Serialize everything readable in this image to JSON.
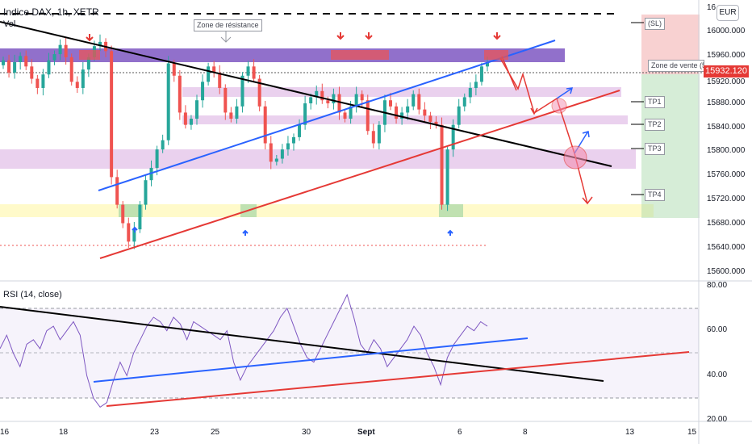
{
  "header": {
    "symbol": "Indice DAX, 1h, XETR",
    "volume_label": "Vol",
    "currency": "EUR"
  },
  "annotations": {
    "resistance_zone": "Zone de résistance",
    "sell_zone": "Zone de vente (5",
    "sl": "(SL)",
    "tp1": "TP1",
    "tp2": "TP2",
    "tp3": "TP3",
    "tp4": "TP4"
  },
  "price_axis": {
    "top_partial": "16",
    "current_price": "15932.120",
    "ticks": [
      "16000.000",
      "15960.000",
      "15920.000",
      "15880.000",
      "15840.000",
      "15800.000",
      "15760.000",
      "15720.000",
      "15680.000",
      "15640.000",
      "15600.000"
    ]
  },
  "rsi": {
    "label": "RSI (14, close)",
    "ticks": [
      "80.00",
      "60.00",
      "40.00",
      "20.00"
    ]
  },
  "time_axis": {
    "labels": [
      "16",
      "18",
      "23",
      "25",
      "30",
      "Sept",
      "6",
      "8",
      "13",
      "15"
    ]
  },
  "colors": {
    "up_candle": "#26a69a",
    "down_candle": "#ef5350",
    "resistance_zone": "#7e57c2",
    "support_zone": "#fff9c4",
    "trend_blue": "#2962ff",
    "trend_red": "#e53935",
    "rsi_line": "#7e57c2"
  },
  "chart_data": [
    {
      "type": "candlestick",
      "title": "Indice DAX, 1h, XETR",
      "x": [
        "16",
        "18",
        "23",
        "25",
        "30",
        "Sept",
        "6",
        "8",
        "13",
        "15"
      ],
      "ylim": [
        15580,
        16020
      ],
      "current_price": 15932.12,
      "levels": {
        "tp1": 15880,
        "tp2": 15845,
        "tp3": 15800,
        "tp4": 15725
      },
      "closes": [
        15935,
        15915,
        15932,
        15942,
        15925,
        15905,
        15890,
        15912,
        15935,
        15945,
        15960,
        15940,
        15900,
        15890,
        15920,
        15940,
        15958,
        15965,
        15950,
        15745,
        15700,
        15670,
        15640,
        15660,
        15700,
        15740,
        15760,
        15790,
        15805,
        15930,
        15910,
        15850,
        15830,
        15840,
        15870,
        15900,
        15925,
        15915,
        15890,
        15850,
        15840,
        15860,
        15910,
        15925,
        15905,
        15860,
        15800,
        15770,
        15775,
        15790,
        15800,
        15810,
        15830,
        15865,
        15875,
        15885,
        15870,
        15865,
        15880,
        15850,
        15840,
        15860,
        15880,
        15870,
        15820,
        15800,
        15830,
        15870,
        15860,
        15840,
        15850,
        15860,
        15880,
        15855,
        15845,
        15835,
        15830,
        15700,
        15790,
        15830,
        15860,
        15875,
        15890,
        15900,
        15925,
        15932
      ]
    },
    {
      "type": "line",
      "title": "RSI (14, close)",
      "ylim": [
        20,
        80
      ],
      "values": [
        52,
        58,
        50,
        44,
        54,
        56,
        52,
        60,
        62,
        56,
        60,
        64,
        58,
        40,
        30,
        26,
        28,
        38,
        46,
        40,
        50,
        56,
        62,
        66,
        64,
        60,
        66,
        63,
        56,
        64,
        62,
        60,
        58,
        56,
        60,
        46,
        38,
        44,
        48,
        52,
        56,
        60,
        66,
        70,
        62,
        54,
        48,
        46,
        52,
        58,
        64,
        70,
        76,
        66,
        54,
        50,
        56,
        52,
        44,
        48,
        52,
        56,
        62,
        58,
        50,
        44,
        36,
        48,
        54,
        58,
        62,
        60,
        64,
        62
      ]
    }
  ]
}
